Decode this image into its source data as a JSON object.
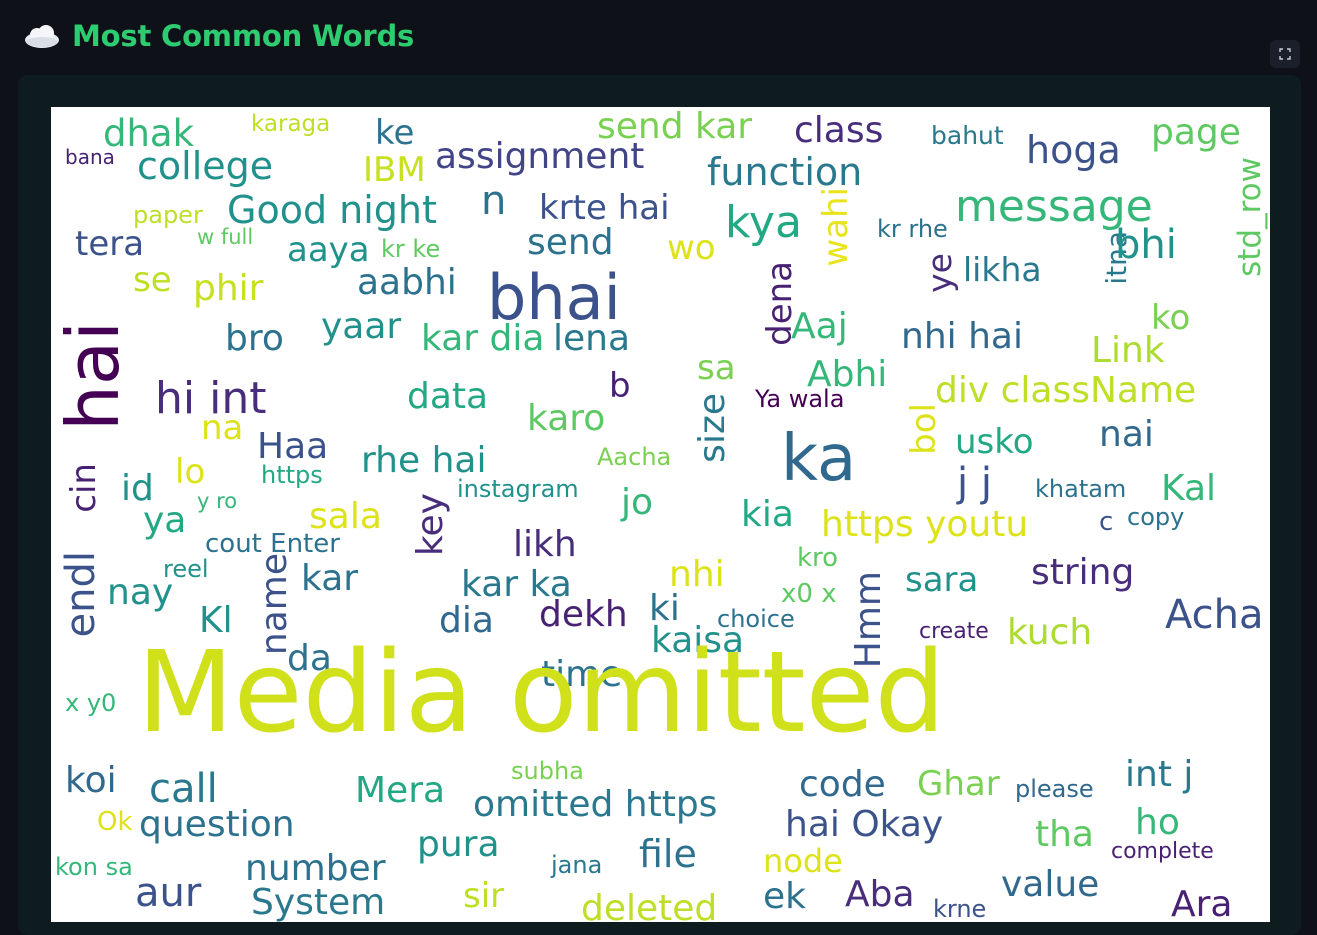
{
  "header": {
    "title": "Most Common Words",
    "icon": "cloud-icon"
  },
  "colors": {
    "background": "#0e1117",
    "panel": "#0e1c20",
    "title": "#2ecc71"
  },
  "wordcloud": {
    "words": [
      {
        "t": "dhak",
        "c": "#35b779"
      },
      {
        "t": "karaga",
        "c": "#bddf26"
      },
      {
        "t": "ke",
        "c": "#2c728e"
      },
      {
        "t": "send kar",
        "c": "#7ad151"
      },
      {
        "t": "class",
        "c": "#472d7b"
      },
      {
        "t": "bahut",
        "c": "#2a788e"
      },
      {
        "t": "hoga",
        "c": "#3b528b"
      },
      {
        "t": "page",
        "c": "#5ec962"
      },
      {
        "t": "bana",
        "c": "#482173"
      },
      {
        "t": "college",
        "c": "#21918c"
      },
      {
        "t": "IBM",
        "c": "#c8e020"
      },
      {
        "t": "assignment",
        "c": "#414487"
      },
      {
        "t": "function",
        "c": "#2a788e"
      },
      {
        "t": "std_row",
        "c": "#5ec962"
      },
      {
        "t": "paper",
        "c": "#bddf26"
      },
      {
        "t": "Good night",
        "c": "#21918c"
      },
      {
        "t": "n",
        "c": "#2c728e"
      },
      {
        "t": "krte hai",
        "c": "#3b528b"
      },
      {
        "t": "kya",
        "c": "#22a884"
      },
      {
        "t": "message",
        "c": "#35b779"
      },
      {
        "t": "wahi",
        "c": "#e8e419"
      },
      {
        "t": "kr rhe",
        "c": "#2c728e"
      },
      {
        "t": "itna",
        "c": "#2a788e"
      },
      {
        "t": "tera",
        "c": "#3b528b"
      },
      {
        "t": "w full",
        "c": "#5ec962"
      },
      {
        "t": "aaya",
        "c": "#21918c"
      },
      {
        "t": "kr ke",
        "c": "#5ec962"
      },
      {
        "t": "send",
        "c": "#2c728e"
      },
      {
        "t": "wo",
        "c": "#dde318"
      },
      {
        "t": "bhi",
        "c": "#21918c"
      },
      {
        "t": "likha",
        "c": "#2a788e"
      },
      {
        "t": "ye",
        "c": "#472d7b"
      },
      {
        "t": "se",
        "c": "#bddf26"
      },
      {
        "t": "phir",
        "c": "#c8e020"
      },
      {
        "t": "aabhi",
        "c": "#2c728e"
      },
      {
        "t": "bhai",
        "c": "#3b528b"
      },
      {
        "t": "dena",
        "c": "#482173"
      },
      {
        "t": "ko",
        "c": "#7ad151"
      },
      {
        "t": "hai",
        "c": "#440154"
      },
      {
        "t": "bro",
        "c": "#2c728e"
      },
      {
        "t": "yaar",
        "c": "#21918c"
      },
      {
        "t": "kar dia",
        "c": "#35b779"
      },
      {
        "t": "lena",
        "c": "#2a788e"
      },
      {
        "t": "Aaj",
        "c": "#35b779"
      },
      {
        "t": "nhi hai",
        "c": "#31688e"
      },
      {
        "t": "Link",
        "c": "#addc30"
      },
      {
        "t": "hi int",
        "c": "#472d7b"
      },
      {
        "t": "data",
        "c": "#22a884"
      },
      {
        "t": "b",
        "c": "#482173"
      },
      {
        "t": "sa",
        "c": "#7ad151"
      },
      {
        "t": "Abhi",
        "c": "#35b779"
      },
      {
        "t": "Ya wala",
        "c": "#440154"
      },
      {
        "t": "div className",
        "c": "#bddf26"
      },
      {
        "t": "na",
        "c": "#dde318"
      },
      {
        "t": "karo",
        "c": "#5ec962"
      },
      {
        "t": "size",
        "c": "#2a788e"
      },
      {
        "t": "ka",
        "c": "#31688e"
      },
      {
        "t": "bol",
        "c": "#dde318"
      },
      {
        "t": "usko",
        "c": "#22a884"
      },
      {
        "t": "nai",
        "c": "#31688e"
      },
      {
        "t": "cin",
        "c": "#482173"
      },
      {
        "t": "Haa",
        "c": "#3b528b"
      },
      {
        "t": "rhe hai",
        "c": "#21918c"
      },
      {
        "t": "Aacha",
        "c": "#7ad151"
      },
      {
        "t": "lo",
        "c": "#dde318"
      },
      {
        "t": "https",
        "c": "#22a884"
      },
      {
        "t": "j j",
        "c": "#3b528b"
      },
      {
        "t": "khatam",
        "c": "#2c728e"
      },
      {
        "t": "Kal",
        "c": "#35b779"
      },
      {
        "t": "id",
        "c": "#21918c"
      },
      {
        "t": "instagram",
        "c": "#21918c"
      },
      {
        "t": "key",
        "c": "#472d7b"
      },
      {
        "t": "jo",
        "c": "#35b779"
      },
      {
        "t": "y ro",
        "c": "#35b779"
      },
      {
        "t": "ya",
        "c": "#22a884"
      },
      {
        "t": "sala",
        "c": "#dde318"
      },
      {
        "t": "kia",
        "c": "#22a884"
      },
      {
        "t": "https youtu",
        "c": "#dde318"
      },
      {
        "t": "c",
        "c": "#3b528b"
      },
      {
        "t": "copy",
        "c": "#2c728e"
      },
      {
        "t": "cout Enter",
        "c": "#2c728e"
      },
      {
        "t": "likh",
        "c": "#472d7b"
      },
      {
        "t": "kro",
        "c": "#5ec962"
      },
      {
        "t": "endl",
        "c": "#3b528b"
      },
      {
        "t": "reel",
        "c": "#21918c"
      },
      {
        "t": "name",
        "c": "#3b528b"
      },
      {
        "t": "kar",
        "c": "#2c728e"
      },
      {
        "t": "kar ka",
        "c": "#2a788e"
      },
      {
        "t": "nhi",
        "c": "#dde318"
      },
      {
        "t": "sara",
        "c": "#21918c"
      },
      {
        "t": "string",
        "c": "#472d7b"
      },
      {
        "t": "nay",
        "c": "#21918c"
      },
      {
        "t": "x0 x",
        "c": "#5ec962"
      },
      {
        "t": "Hmm",
        "c": "#3b528b"
      },
      {
        "t": "Kl",
        "c": "#21918c"
      },
      {
        "t": "dia",
        "c": "#31688e"
      },
      {
        "t": "dekh",
        "c": "#482173"
      },
      {
        "t": "ki",
        "c": "#2c728e"
      },
      {
        "t": "choice",
        "c": "#2c728e"
      },
      {
        "t": "Acha",
        "c": "#3b528b"
      },
      {
        "t": "create",
        "c": "#482173"
      },
      {
        "t": "kuch",
        "c": "#addc30"
      },
      {
        "t": "kaisa",
        "c": "#21918c"
      },
      {
        "t": "da",
        "c": "#2c728e"
      },
      {
        "t": "time",
        "c": "#2c728e"
      },
      {
        "t": "Media omitted",
        "c": "#d0e11c"
      },
      {
        "t": "x y0",
        "c": "#35b779"
      },
      {
        "t": "koi",
        "c": "#31688e"
      },
      {
        "t": "call",
        "c": "#2a788e"
      },
      {
        "t": "subha",
        "c": "#7ad151"
      },
      {
        "t": "Mera",
        "c": "#22a884"
      },
      {
        "t": "code",
        "c": "#31688e"
      },
      {
        "t": "Ghar",
        "c": "#7ad151"
      },
      {
        "t": "please",
        "c": "#31688e"
      },
      {
        "t": "int j",
        "c": "#2a788e"
      },
      {
        "t": "omitted https",
        "c": "#2a788e"
      },
      {
        "t": "Ok",
        "c": "#dde318"
      },
      {
        "t": "question",
        "c": "#2c728e"
      },
      {
        "t": "hai Okay",
        "c": "#3b528b"
      },
      {
        "t": "tha",
        "c": "#5ec962"
      },
      {
        "t": "ho",
        "c": "#35b779"
      },
      {
        "t": "pura",
        "c": "#21918c"
      },
      {
        "t": "complete",
        "c": "#482173"
      },
      {
        "t": "kon sa",
        "c": "#35b779"
      },
      {
        "t": "file",
        "c": "#2c728e"
      },
      {
        "t": "jana",
        "c": "#2a788e"
      },
      {
        "t": "node",
        "c": "#dde318"
      },
      {
        "t": "number",
        "c": "#2c728e"
      },
      {
        "t": "value",
        "c": "#31688e"
      },
      {
        "t": "aur",
        "c": "#3b528b"
      },
      {
        "t": "sir",
        "c": "#bddf26"
      },
      {
        "t": "ek",
        "c": "#2c728e"
      },
      {
        "t": "Aba",
        "c": "#472d7b"
      },
      {
        "t": "System",
        "c": "#2a788e"
      },
      {
        "t": "deleted",
        "c": "#bddf26"
      },
      {
        "t": "krne",
        "c": "#3b528b"
      },
      {
        "t": "Ara",
        "c": "#482173"
      }
    ]
  }
}
